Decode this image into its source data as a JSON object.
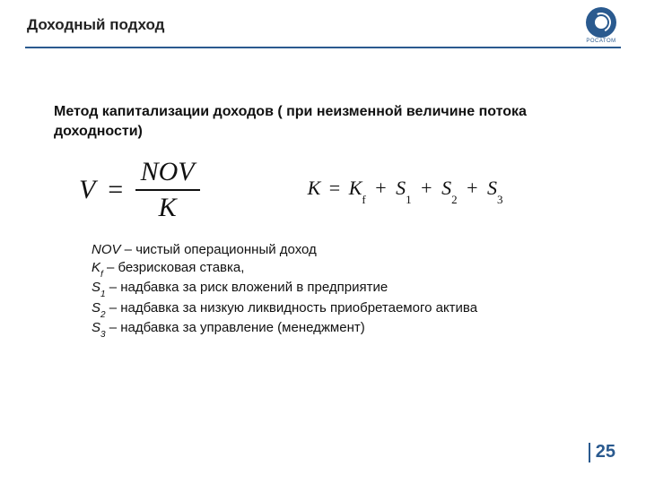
{
  "header": {
    "title": "Доходный подход",
    "logo_text": "POCATOM",
    "rule_color": "#2a5a8f",
    "logo_color": "#2a5a8f"
  },
  "content": {
    "subtitle": "Метод капитализации доходов ( при неизменной величине потока доходности)",
    "formula_v": {
      "lhs": "V",
      "eq": "=",
      "numerator": "NOV",
      "denominator": "K"
    },
    "formula_k": {
      "lhs": "K",
      "eq": "=",
      "term1_base": "K",
      "term1_sub": "f",
      "plus": "+",
      "term2_base": "S",
      "term2_sub": "1",
      "term3_base": "S",
      "term3_sub": "2",
      "term4_base": "S",
      "term4_sub": "3"
    },
    "definitions": [
      {
        "term": "NOV",
        "sub": "",
        "text": " – чистый операционный доход"
      },
      {
        "term": "K",
        "sub": "f",
        "text": " – безрисковая ставка,"
      },
      {
        "term": "S",
        "sub": "1",
        "text": " – надбавка за риск вложений в предприятие"
      },
      {
        "term": "S",
        "sub": "2",
        "text": " – надбавка за низкую ликвидность приобретаемого актива"
      },
      {
        "term": "S",
        "sub": "3",
        "text": " – надбавка за управление (менеджмент)"
      }
    ]
  },
  "page_number": "25"
}
